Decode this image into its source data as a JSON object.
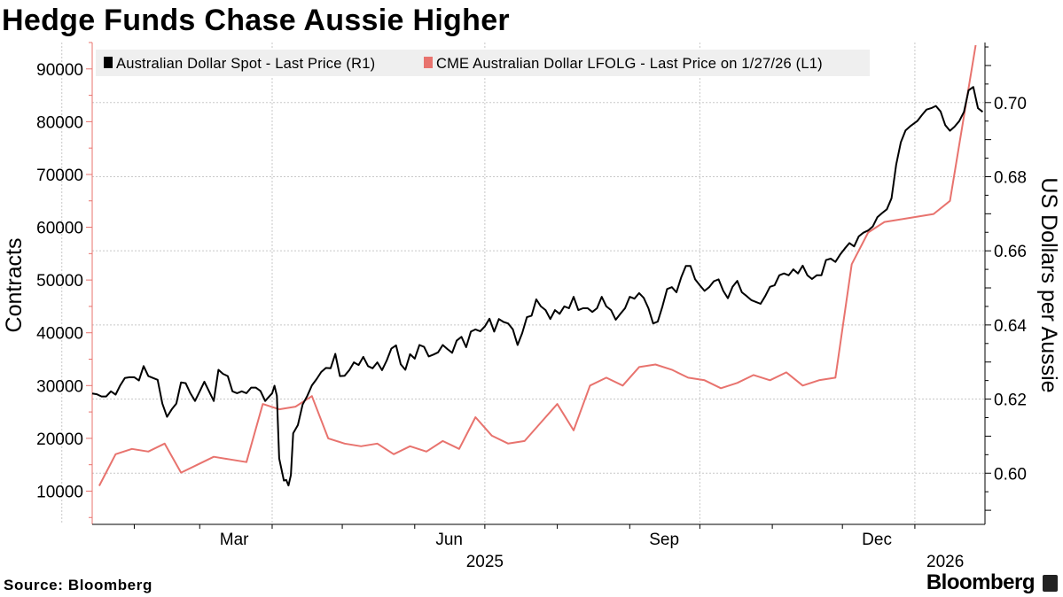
{
  "title": "Hedge Funds Chase Aussie Higher",
  "source": "Source: Bloomberg",
  "brand": "Bloomberg",
  "chart_data": {
    "type": "line",
    "title": "Hedge Funds Chase Aussie Higher",
    "legend": {
      "placement": "top-left",
      "entries": [
        "Australian Dollar Spot - Last Price (R1)",
        "CME Australian Dollar LFOLG - Last Price on 1/27/26 (L1)"
      ]
    },
    "ylabel_left": "Contracts",
    "ylabel_right": "US Dollars per Aussie",
    "ylim_left": [
      3700,
      95000
    ],
    "ylim_right": [
      0.5862,
      0.7162
    ],
    "yticks_left": [
      10000,
      20000,
      30000,
      40000,
      50000,
      60000,
      70000,
      80000,
      90000
    ],
    "yticks_right": [
      "0.60",
      "0.62",
      "0.64",
      "0.66",
      "0.68",
      "0.70"
    ],
    "x_axis": {
      "start": "2025-01-14",
      "end": "2026-01-31",
      "month_labels": [
        {
          "label": "Mar",
          "date": "2025-03-01"
        },
        {
          "label": "Jun",
          "date": "2025-06-01"
        },
        {
          "label": "Sep",
          "date": "2025-09-01"
        },
        {
          "label": "Dec",
          "date": "2025-12-01"
        }
      ],
      "year_labels": [
        {
          "label": "2025",
          "date": "2025-07-01"
        },
        {
          "label": "2026",
          "date": "2026-01-14"
        }
      ],
      "gridlines": [
        "2025-01-01",
        "2025-04-01",
        "2025-07-01",
        "2025-10-01",
        "2026-01-01"
      ]
    },
    "series": [
      {
        "name": "Australian Dollar Spot - Last Price (R1)",
        "axis": "right",
        "color": "#000000",
        "points": [
          [
            "2025-01-14",
            0.6215
          ],
          [
            "2025-01-16",
            0.6213
          ],
          [
            "2025-01-18",
            0.6207
          ],
          [
            "2025-01-20",
            0.6207
          ],
          [
            "2025-01-22",
            0.6221
          ],
          [
            "2025-01-24",
            0.6212
          ],
          [
            "2025-01-26",
            0.6237
          ],
          [
            "2025-01-28",
            0.6257
          ],
          [
            "2025-01-30",
            0.6259
          ],
          [
            "2025-02-01",
            0.6259
          ],
          [
            "2025-02-03",
            0.625
          ],
          [
            "2025-02-05",
            0.6289
          ],
          [
            "2025-02-07",
            0.6262
          ],
          [
            "2025-02-09",
            0.6257
          ],
          [
            "2025-02-11",
            0.6252
          ],
          [
            "2025-02-13",
            0.6188
          ],
          [
            "2025-02-15",
            0.6152
          ],
          [
            "2025-02-17",
            0.6172
          ],
          [
            "2025-02-19",
            0.6188
          ],
          [
            "2025-02-21",
            0.6245
          ],
          [
            "2025-02-23",
            0.6243
          ],
          [
            "2025-02-25",
            0.6216
          ],
          [
            "2025-02-27",
            0.6195
          ],
          [
            "2025-03-01",
            0.6221
          ],
          [
            "2025-03-03",
            0.6247
          ],
          [
            "2025-03-05",
            0.6221
          ],
          [
            "2025-03-07",
            0.6195
          ],
          [
            "2025-03-09",
            0.6279
          ],
          [
            "2025-03-11",
            0.6268
          ],
          [
            "2025-03-13",
            0.6262
          ],
          [
            "2025-03-15",
            0.6221
          ],
          [
            "2025-03-17",
            0.6216
          ],
          [
            "2025-03-19",
            0.6221
          ],
          [
            "2025-03-21",
            0.6216
          ],
          [
            "2025-03-23",
            0.6231
          ],
          [
            "2025-03-25",
            0.6231
          ],
          [
            "2025-03-27",
            0.6222
          ],
          [
            "2025-03-29",
            0.6195
          ],
          [
            "2025-04-01",
            0.6216
          ],
          [
            "2025-04-02",
            0.6236
          ],
          [
            "2025-04-03",
            0.6209
          ],
          [
            "2025-04-04",
            0.604
          ],
          [
            "2025-04-06",
            0.598
          ],
          [
            "2025-04-07",
            0.5982
          ],
          [
            "2025-04-08",
            0.5967
          ],
          [
            "2025-04-09",
            0.5995
          ],
          [
            "2025-04-10",
            0.6108
          ],
          [
            "2025-04-12",
            0.613
          ],
          [
            "2025-04-14",
            0.6185
          ],
          [
            "2025-04-16",
            0.6208
          ],
          [
            "2025-04-18",
            0.6237
          ],
          [
            "2025-04-20",
            0.6254
          ],
          [
            "2025-04-22",
            0.6273
          ],
          [
            "2025-04-24",
            0.6284
          ],
          [
            "2025-04-26",
            0.6283
          ],
          [
            "2025-04-28",
            0.6322
          ],
          [
            "2025-04-30",
            0.6262
          ],
          [
            "2025-05-02",
            0.6263
          ],
          [
            "2025-05-04",
            0.6278
          ],
          [
            "2025-05-06",
            0.6299
          ],
          [
            "2025-05-08",
            0.6292
          ],
          [
            "2025-05-10",
            0.6314
          ],
          [
            "2025-05-12",
            0.6289
          ],
          [
            "2025-05-14",
            0.6283
          ],
          [
            "2025-05-16",
            0.6299
          ],
          [
            "2025-05-18",
            0.6278
          ],
          [
            "2025-05-20",
            0.6304
          ],
          [
            "2025-05-22",
            0.6336
          ],
          [
            "2025-05-24",
            0.6345
          ],
          [
            "2025-05-26",
            0.6294
          ],
          [
            "2025-05-28",
            0.6279
          ],
          [
            "2025-05-30",
            0.6321
          ],
          [
            "2025-06-01",
            0.6309
          ],
          [
            "2025-06-03",
            0.6346
          ],
          [
            "2025-06-05",
            0.6341
          ],
          [
            "2025-06-07",
            0.6315
          ],
          [
            "2025-06-09",
            0.632
          ],
          [
            "2025-06-11",
            0.6326
          ],
          [
            "2025-06-13",
            0.6346
          ],
          [
            "2025-06-15",
            0.6335
          ],
          [
            "2025-06-17",
            0.6325
          ],
          [
            "2025-06-19",
            0.6358
          ],
          [
            "2025-06-21",
            0.6368
          ],
          [
            "2025-06-23",
            0.634
          ],
          [
            "2025-06-25",
            0.6382
          ],
          [
            "2025-06-27",
            0.6388
          ],
          [
            "2025-06-29",
            0.6383
          ],
          [
            "2025-07-01",
            0.6396
          ],
          [
            "2025-07-03",
            0.6417
          ],
          [
            "2025-07-05",
            0.6382
          ],
          [
            "2025-07-07",
            0.6416
          ],
          [
            "2025-07-09",
            0.6408
          ],
          [
            "2025-07-11",
            0.6404
          ],
          [
            "2025-07-13",
            0.6388
          ],
          [
            "2025-07-15",
            0.6346
          ],
          [
            "2025-07-17",
            0.6378
          ],
          [
            "2025-07-19",
            0.6421
          ],
          [
            "2025-07-21",
            0.6425
          ],
          [
            "2025-07-23",
            0.6469
          ],
          [
            "2025-07-25",
            0.645
          ],
          [
            "2025-07-27",
            0.644
          ],
          [
            "2025-07-29",
            0.6416
          ],
          [
            "2025-07-31",
            0.644
          ],
          [
            "2025-08-02",
            0.643
          ],
          [
            "2025-08-04",
            0.645
          ],
          [
            "2025-08-06",
            0.6445
          ],
          [
            "2025-08-08",
            0.6476
          ],
          [
            "2025-08-10",
            0.644
          ],
          [
            "2025-08-12",
            0.6445
          ],
          [
            "2025-08-14",
            0.6445
          ],
          [
            "2025-08-16",
            0.6435
          ],
          [
            "2025-08-18",
            0.6445
          ],
          [
            "2025-08-20",
            0.6476
          ],
          [
            "2025-08-22",
            0.645
          ],
          [
            "2025-08-24",
            0.644
          ],
          [
            "2025-08-26",
            0.6414
          ],
          [
            "2025-08-28",
            0.643
          ],
          [
            "2025-08-30",
            0.6445
          ],
          [
            "2025-09-01",
            0.6476
          ],
          [
            "2025-09-03",
            0.6471
          ],
          [
            "2025-09-05",
            0.6486
          ],
          [
            "2025-09-07",
            0.6473
          ],
          [
            "2025-09-09",
            0.6445
          ],
          [
            "2025-09-11",
            0.6404
          ],
          [
            "2025-09-13",
            0.6409
          ],
          [
            "2025-09-15",
            0.645
          ],
          [
            "2025-09-17",
            0.6497
          ],
          [
            "2025-09-19",
            0.6502
          ],
          [
            "2025-09-21",
            0.6488
          ],
          [
            "2025-09-23",
            0.6528
          ],
          [
            "2025-09-25",
            0.6559
          ],
          [
            "2025-09-27",
            0.6559
          ],
          [
            "2025-09-29",
            0.6523
          ],
          [
            "2025-10-01",
            0.6507
          ],
          [
            "2025-10-03",
            0.6492
          ],
          [
            "2025-10-05",
            0.6502
          ],
          [
            "2025-10-07",
            0.6518
          ],
          [
            "2025-10-09",
            0.6523
          ],
          [
            "2025-10-11",
            0.6492
          ],
          [
            "2025-10-13",
            0.6472
          ],
          [
            "2025-10-15",
            0.6503
          ],
          [
            "2025-10-17",
            0.6519
          ],
          [
            "2025-10-19",
            0.6488
          ],
          [
            "2025-10-21",
            0.6478
          ],
          [
            "2025-10-23",
            0.6467
          ],
          [
            "2025-10-25",
            0.6462
          ],
          [
            "2025-10-27",
            0.6457
          ],
          [
            "2025-10-29",
            0.6478
          ],
          [
            "2025-10-31",
            0.6503
          ],
          [
            "2025-11-02",
            0.6507
          ],
          [
            "2025-11-04",
            0.6534
          ],
          [
            "2025-11-06",
            0.6539
          ],
          [
            "2025-11-08",
            0.6534
          ],
          [
            "2025-11-10",
            0.655
          ],
          [
            "2025-11-12",
            0.6539
          ],
          [
            "2025-11-14",
            0.656
          ],
          [
            "2025-11-16",
            0.6534
          ],
          [
            "2025-11-18",
            0.6524
          ],
          [
            "2025-11-20",
            0.6534
          ],
          [
            "2025-11-22",
            0.6534
          ],
          [
            "2025-11-24",
            0.6575
          ],
          [
            "2025-11-26",
            0.6579
          ],
          [
            "2025-11-28",
            0.657
          ],
          [
            "2025-11-30",
            0.659
          ],
          [
            "2025-12-02",
            0.6606
          ],
          [
            "2025-12-04",
            0.6621
          ],
          [
            "2025-12-06",
            0.6612
          ],
          [
            "2025-12-08",
            0.6639
          ],
          [
            "2025-12-10",
            0.6649
          ],
          [
            "2025-12-12",
            0.6655
          ],
          [
            "2025-12-14",
            0.6666
          ],
          [
            "2025-12-16",
            0.6691
          ],
          [
            "2025-12-18",
            0.6702
          ],
          [
            "2025-12-20",
            0.6712
          ],
          [
            "2025-12-22",
            0.6742
          ],
          [
            "2025-12-24",
            0.6832
          ],
          [
            "2025-12-26",
            0.6893
          ],
          [
            "2025-12-28",
            0.6925
          ],
          [
            "2025-12-30",
            0.6936
          ],
          [
            "2026-01-02",
            0.695
          ],
          [
            "2026-01-04",
            0.6966
          ],
          [
            "2026-01-06",
            0.6981
          ],
          [
            "2026-01-08",
            0.6985
          ],
          [
            "2026-01-10",
            0.6991
          ],
          [
            "2026-01-12",
            0.6976
          ],
          [
            "2026-01-14",
            0.6939
          ],
          [
            "2026-01-16",
            0.6924
          ],
          [
            "2026-01-18",
            0.6935
          ],
          [
            "2026-01-20",
            0.695
          ],
          [
            "2026-01-22",
            0.6975
          ],
          [
            "2026-01-24",
            0.7033
          ],
          [
            "2026-01-26",
            0.7042
          ],
          [
            "2026-01-28",
            0.6985
          ],
          [
            "2026-01-30",
            0.6975
          ]
        ]
      },
      {
        "name": "CME Australian Dollar LFOLG - Last Price on 1/27/26 (L1)",
        "axis": "left",
        "color": "#e8736e",
        "points": [
          [
            "2025-01-17",
            11000
          ],
          [
            "2025-01-24",
            17000
          ],
          [
            "2025-01-31",
            18000
          ],
          [
            "2025-02-07",
            17500
          ],
          [
            "2025-02-14",
            19000
          ],
          [
            "2025-02-21",
            13500
          ],
          [
            "2025-02-28",
            15000
          ],
          [
            "2025-03-07",
            16500
          ],
          [
            "2025-03-14",
            16000
          ],
          [
            "2025-03-21",
            15500
          ],
          [
            "2025-03-28",
            26500
          ],
          [
            "2025-04-04",
            25500
          ],
          [
            "2025-04-11",
            26000
          ],
          [
            "2025-04-18",
            28000
          ],
          [
            "2025-04-25",
            20000
          ],
          [
            "2025-05-02",
            19000
          ],
          [
            "2025-05-09",
            18500
          ],
          [
            "2025-05-16",
            19000
          ],
          [
            "2025-05-23",
            17000
          ],
          [
            "2025-05-30",
            18500
          ],
          [
            "2025-06-06",
            17500
          ],
          [
            "2025-06-13",
            19500
          ],
          [
            "2025-06-20",
            18000
          ],
          [
            "2025-06-27",
            24000
          ],
          [
            "2025-07-04",
            20500
          ],
          [
            "2025-07-11",
            19000
          ],
          [
            "2025-07-18",
            19500
          ],
          [
            "2025-07-25",
            23000
          ],
          [
            "2025-08-01",
            26500
          ],
          [
            "2025-08-08",
            21500
          ],
          [
            "2025-08-15",
            30000
          ],
          [
            "2025-08-22",
            31500
          ],
          [
            "2025-08-29",
            30000
          ],
          [
            "2025-09-05",
            33500
          ],
          [
            "2025-09-12",
            34000
          ],
          [
            "2025-09-19",
            33000
          ],
          [
            "2025-09-26",
            31500
          ],
          [
            "2025-10-03",
            31000
          ],
          [
            "2025-10-10",
            29500
          ],
          [
            "2025-10-17",
            30500
          ],
          [
            "2025-10-24",
            32000
          ],
          [
            "2025-10-31",
            31000
          ],
          [
            "2025-11-07",
            32500
          ],
          [
            "2025-11-14",
            30000
          ],
          [
            "2025-11-21",
            31000
          ],
          [
            "2025-11-28",
            31500
          ],
          [
            "2025-12-05",
            53000
          ],
          [
            "2025-12-12",
            59000
          ],
          [
            "2025-12-19",
            61000
          ],
          [
            "2025-12-26",
            61500
          ],
          [
            "2026-01-02",
            62000
          ],
          [
            "2026-01-09",
            62500
          ],
          [
            "2026-01-16",
            65000
          ],
          [
            "2026-01-27",
            94500
          ]
        ]
      }
    ]
  }
}
